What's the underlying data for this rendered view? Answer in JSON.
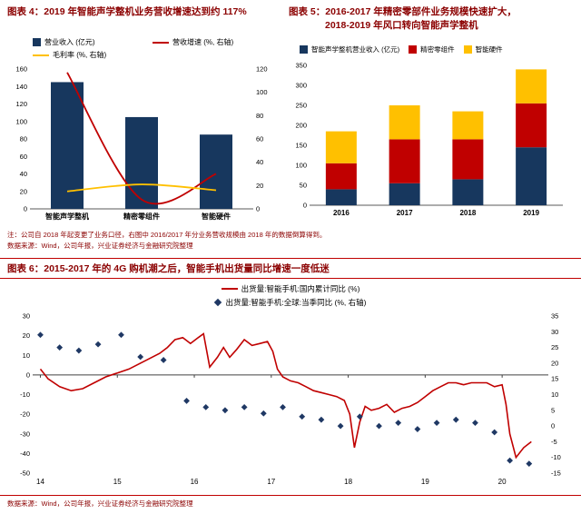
{
  "colors": {
    "navy": "#17375E",
    "scatter_navy": "#1F3864",
    "red": "#C00000",
    "yellow": "#FFC000",
    "title_text": "#8B0000",
    "rule": "#C00000"
  },
  "header": {
    "chart4_title": "图表 4：2019 年智能声学整机业务营收增速达到约 117%",
    "chart5_title_line1": "图表 5：2016-2017 年精密零部件业务规模快速扩大，",
    "chart5_title_line2": "2018-2019 年风口转向智能声学整机"
  },
  "notes": {
    "note": "注：公司自 2018 年起变更了业务口径，右图中 2016/2017 年分业务营收规模由 2018 年的数据倒算得到。",
    "source": "数据来源：Wind，公司年报，兴业证券经济与金融研究院整理"
  },
  "chart6_header": "图表 6：2015-2017 年的 4G 购机潮之后，智能手机出货量同比增速一度低迷",
  "footer_source": "数据来源：Wind，公司年报，兴业证券经济与金融研究院整理",
  "chart_data": [
    {
      "id": "chart4",
      "type": "bar",
      "subtype": "combo-bar-line",
      "title": "2019 年智能声学整机业务营收增速达到约 117%",
      "categories": [
        "智能声学整机",
        "精密零组件",
        "智能硬件"
      ],
      "series": [
        {
          "name": "营业收入 (亿元)",
          "kind": "bar",
          "axis": "left",
          "color": "#17375E",
          "values": [
            145,
            105,
            85
          ]
        },
        {
          "name": "营收增速 (%, 右轴)",
          "kind": "line",
          "axis": "right",
          "color": "#C00000",
          "values": [
            117,
            8,
            30
          ]
        },
        {
          "name": "毛利率 (%, 右轴)",
          "kind": "line",
          "axis": "right",
          "color": "#FFC000",
          "values": [
            15,
            21,
            16
          ]
        }
      ],
      "left_axis": {
        "min": 0,
        "max": 160,
        "step": 20
      },
      "right_axis": {
        "min": 0,
        "max": 120,
        "step": 20
      },
      "grid": false,
      "legend_position": "top"
    },
    {
      "id": "chart5",
      "type": "bar",
      "subtype": "stacked-bar",
      "title": "2016-2017 年精密零部件业务规模快速扩大，2018-2019 年风口转向智能声学整机",
      "categories": [
        "2016",
        "2017",
        "2018",
        "2019"
      ],
      "series": [
        {
          "name": "智能声学整机营业收入 (亿元)",
          "color": "#17375E",
          "values": [
            40,
            55,
            65,
            145
          ]
        },
        {
          "name": "精密零组件",
          "color": "#C00000",
          "values": [
            65,
            110,
            100,
            110
          ]
        },
        {
          "name": "智能硬件",
          "color": "#FFC000",
          "values": [
            80,
            85,
            70,
            85
          ]
        }
      ],
      "y_axis": {
        "min": 0,
        "max": 350,
        "step": 50
      },
      "grid": false,
      "legend_position": "top"
    },
    {
      "id": "chart6",
      "type": "line",
      "subtype": "line-scatter",
      "title": "2015-2017 年的 4G 购机潮之后，智能手机出货量同比增速一度低迷",
      "x_axis": {
        "min": 13.9,
        "max": 20.6,
        "ticks": [
          14,
          15,
          16,
          17,
          18,
          19,
          20
        ]
      },
      "left_axis": {
        "min": -50,
        "max": 30,
        "step": 10
      },
      "right_axis": {
        "min": -15,
        "max": 35,
        "step": 5
      },
      "grid": false,
      "legend_position": "top",
      "series": [
        {
          "name": "出货量:智能手机:国内累计同比 (%)",
          "kind": "line",
          "axis": "left",
          "color": "#C00000",
          "points": [
            [
              14.0,
              3
            ],
            [
              14.1,
              -2
            ],
            [
              14.25,
              -6
            ],
            [
              14.4,
              -8
            ],
            [
              14.55,
              -7
            ],
            [
              14.7,
              -4
            ],
            [
              14.85,
              -1
            ],
            [
              15.0,
              1
            ],
            [
              15.15,
              3
            ],
            [
              15.3,
              6
            ],
            [
              15.45,
              9
            ],
            [
              15.55,
              11
            ],
            [
              15.65,
              14
            ],
            [
              15.75,
              18
            ],
            [
              15.85,
              19
            ],
            [
              15.95,
              16
            ],
            [
              16.05,
              19
            ],
            [
              16.12,
              21
            ],
            [
              16.2,
              4
            ],
            [
              16.3,
              9
            ],
            [
              16.38,
              14
            ],
            [
              16.46,
              9
            ],
            [
              16.55,
              13
            ],
            [
              16.65,
              18
            ],
            [
              16.75,
              15
            ],
            [
              16.85,
              16
            ],
            [
              16.95,
              17
            ],
            [
              17.02,
              12
            ],
            [
              17.08,
              3
            ],
            [
              17.15,
              -1
            ],
            [
              17.25,
              -3
            ],
            [
              17.35,
              -4
            ],
            [
              17.45,
              -6
            ],
            [
              17.55,
              -8
            ],
            [
              17.65,
              -9
            ],
            [
              17.75,
              -10
            ],
            [
              17.85,
              -11
            ],
            [
              17.95,
              -13
            ],
            [
              18.02,
              -20
            ],
            [
              18.08,
              -37
            ],
            [
              18.15,
              -24
            ],
            [
              18.22,
              -16
            ],
            [
              18.3,
              -18
            ],
            [
              18.4,
              -17
            ],
            [
              18.5,
              -15
            ],
            [
              18.6,
              -19
            ],
            [
              18.7,
              -17
            ],
            [
              18.8,
              -16
            ],
            [
              18.9,
              -14
            ],
            [
              19.0,
              -11
            ],
            [
              19.1,
              -8
            ],
            [
              19.2,
              -6
            ],
            [
              19.3,
              -4
            ],
            [
              19.4,
              -4
            ],
            [
              19.5,
              -5
            ],
            [
              19.6,
              -4
            ],
            [
              19.7,
              -4
            ],
            [
              19.8,
              -4
            ],
            [
              19.9,
              -6
            ],
            [
              20.0,
              -5
            ],
            [
              20.05,
              -15
            ],
            [
              20.1,
              -30
            ],
            [
              20.18,
              -42
            ],
            [
              20.28,
              -37
            ],
            [
              20.38,
              -34
            ]
          ]
        },
        {
          "name": "出货量:智能手机:全球:当季同比 (%, 右轴)",
          "kind": "scatter",
          "axis": "right",
          "color": "#1F3864",
          "points": [
            [
              14.0,
              29
            ],
            [
              14.25,
              25
            ],
            [
              14.5,
              24
            ],
            [
              14.75,
              26
            ],
            [
              15.05,
              29
            ],
            [
              15.3,
              22
            ],
            [
              15.6,
              21
            ],
            [
              15.9,
              8
            ],
            [
              16.15,
              6
            ],
            [
              16.4,
              5
            ],
            [
              16.65,
              6
            ],
            [
              16.9,
              4
            ],
            [
              17.15,
              6
            ],
            [
              17.4,
              3
            ],
            [
              17.65,
              2
            ],
            [
              17.9,
              0
            ],
            [
              18.15,
              3
            ],
            [
              18.4,
              0
            ],
            [
              18.65,
              1
            ],
            [
              18.9,
              -1
            ],
            [
              19.15,
              1
            ],
            [
              19.4,
              2
            ],
            [
              19.65,
              1
            ],
            [
              19.9,
              -2
            ],
            [
              20.1,
              -11
            ],
            [
              20.35,
              -12
            ]
          ]
        }
      ]
    }
  ]
}
